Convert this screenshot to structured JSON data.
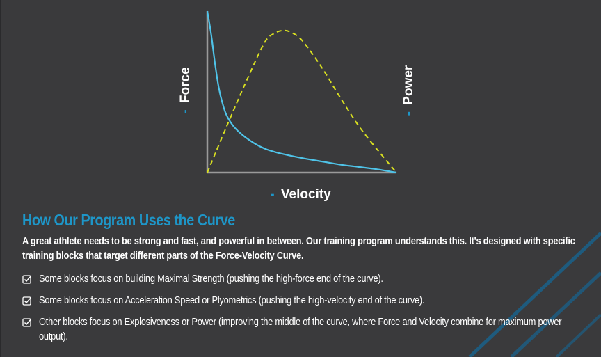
{
  "chart_data": {
    "type": "line",
    "title": "",
    "xlabel": "Velocity",
    "ylabel": "Force",
    "y2label": "Power",
    "label_prefix": "-",
    "grid": false,
    "legend": "none",
    "xlim": [
      0,
      1
    ],
    "ylim": [
      0,
      1
    ],
    "series": [
      {
        "style": "solid",
        "color": "#4fc3e8",
        "x": [
          0,
          0.02,
          0.04,
          0.06,
          0.08,
          0.1,
          0.13,
          0.16,
          0.2,
          0.25,
          0.3,
          0.35,
          0.4,
          0.5,
          0.6,
          0.7,
          0.8,
          0.9,
          1.0
        ],
        "y": [
          1.0,
          0.86,
          0.68,
          0.53,
          0.43,
          0.36,
          0.3,
          0.26,
          0.22,
          0.18,
          0.15,
          0.13,
          0.115,
          0.09,
          0.07,
          0.05,
          0.035,
          0.02,
          0.0
        ]
      },
      {
        "style": "dashed",
        "color": "#d9e021",
        "x": [
          0,
          0.1,
          0.2,
          0.3,
          0.35,
          0.4,
          0.44,
          0.5,
          0.6,
          0.7,
          0.8,
          0.9,
          1.0
        ],
        "y": [
          0.0,
          0.28,
          0.55,
          0.8,
          0.86,
          0.88,
          0.87,
          0.82,
          0.66,
          0.47,
          0.29,
          0.14,
          0.0
        ]
      }
    ]
  },
  "colors": {
    "background": "#3a3a3c",
    "accent": "#1e96c8",
    "force_curve": "#4fc3e8",
    "power_curve": "#d9e021",
    "axis": "#9a9a9a"
  },
  "icons": {
    "bullet": "checkbox-checked-icon"
  },
  "section": {
    "title": "How Our Program Uses the Curve",
    "intro": "A great athlete needs to be strong and fast, and powerful in between. Our training program understands this. It's designed with specific training blocks that target different parts of the Force-Velocity Curve."
  },
  "bullets": [
    {
      "text": "Some blocks focus on building Maximal Strength (pushing the high-force end of the curve)."
    },
    {
      "text": "Some blocks focus on Acceleration Speed or Plyometrics (pushing the high-velocity end of the curve)."
    },
    {
      "text": "Other blocks focus on Explosiveness or Power (improving the middle of the curve, where Force and Velocity combine for maximum power output)."
    }
  ]
}
